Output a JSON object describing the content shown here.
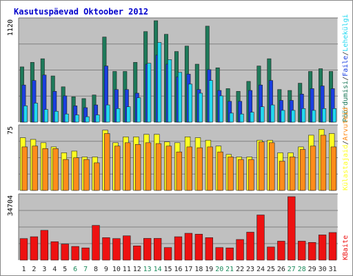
{
  "title": "Kasutuspäevad Oktoober 2012",
  "colors": {
    "title": "#0000cc",
    "panel_bg": "#c0c0c0",
    "grid": "#808080",
    "pages": "#1e7a5a",
    "files": "#1a3fe0",
    "hits": "#22d8f0",
    "visits": "#ffff22",
    "unique": "#ff8c1a",
    "kbytes": "#ee1111",
    "weekend_label": "#1a8a5a",
    "weekday_label": "#222222"
  },
  "chart_data": [
    {
      "type": "bar",
      "panel": "hits",
      "ymax_label": "1120",
      "ylim": [
        0,
        1120
      ],
      "days": [
        "1",
        "2",
        "3",
        "4",
        "5",
        "6",
        "7",
        "8",
        "9",
        "10",
        "11",
        "12",
        "13",
        "14",
        "15",
        "16",
        "17",
        "18",
        "19",
        "20",
        "21",
        "22",
        "23",
        "24",
        "25",
        "26",
        "27",
        "28",
        "29",
        "30",
        "31"
      ],
      "weekend_days": [
        "6",
        "7",
        "13",
        "14",
        "20",
        "21",
        "27",
        "28"
      ],
      "legend": [
        {
          "text": "Pöördumisi",
          "color": "#1e7a5a"
        },
        {
          "text": "Faile",
          "color": "#1a3fe0"
        },
        {
          "text": "Lehekülgi",
          "color": "#22d8f0"
        }
      ],
      "series": [
        {
          "name": "Pöördumisi",
          "values": [
            610,
            660,
            700,
            510,
            390,
            280,
            260,
            300,
            940,
            560,
            560,
            660,
            1000,
            1120,
            970,
            780,
            840,
            640,
            1060,
            600,
            370,
            340,
            450,
            620,
            700,
            360,
            350,
            430,
            560,
            590,
            560
          ]
        },
        {
          "name": "Faile",
          "values": [
            410,
            460,
            520,
            340,
            290,
            180,
            160,
            190,
            620,
            360,
            360,
            320,
            640,
            740,
            640,
            500,
            530,
            360,
            580,
            350,
            230,
            230,
            350,
            410,
            460,
            240,
            240,
            310,
            370,
            400,
            370
          ]
        },
        {
          "name": "Lehekülgi",
          "values": [
            180,
            210,
            140,
            120,
            90,
            80,
            60,
            80,
            190,
            150,
            170,
            270,
            650,
            880,
            690,
            550,
            420,
            320,
            460,
            290,
            100,
            90,
            110,
            170,
            190,
            130,
            130,
            150,
            130,
            150,
            150
          ]
        }
      ]
    },
    {
      "type": "bar",
      "panel": "visits",
      "ymax_label": "75",
      "ylim": [
        0,
        75
      ],
      "legend": [
        {
          "text": "Külastajaid",
          "color": "#ffff22"
        },
        {
          "text": "Arvuteid",
          "color": "#ff8c1a"
        }
      ],
      "series": [
        {
          "name": "Külastajaid",
          "values": [
            63,
            61,
            57,
            52,
            45,
            47,
            40,
            40,
            72,
            57,
            64,
            64,
            67,
            67,
            58,
            57,
            64,
            63,
            60,
            53,
            43,
            40,
            40,
            60,
            60,
            45,
            45,
            52,
            66,
            73,
            68
          ]
        },
        {
          "name": "Arvuteid",
          "values": [
            52,
            53,
            50,
            50,
            37,
            39,
            37,
            33,
            68,
            53,
            57,
            55,
            57,
            56,
            53,
            46,
            52,
            51,
            52,
            46,
            40,
            37,
            37,
            58,
            57,
            35,
            40,
            49,
            53,
            66,
            52
          ]
        }
      ]
    },
    {
      "type": "bar",
      "panel": "kbytes",
      "ymax_label": "34704",
      "ylim": [
        0,
        34704
      ],
      "legend": [
        {
          "text": "KBaite",
          "color": "#ee1111"
        }
      ],
      "series": [
        {
          "name": "KBaite",
          "values": [
            11800,
            12800,
            16300,
            10100,
            8800,
            7500,
            6700,
            19000,
            12300,
            11800,
            13300,
            7800,
            11900,
            11900,
            6900,
            12800,
            14700,
            14200,
            12300,
            6900,
            6700,
            11300,
            15300,
            24700,
            7200,
            10400,
            34704,
            10400,
            9700,
            13800,
            15100
          ]
        }
      ]
    }
  ]
}
